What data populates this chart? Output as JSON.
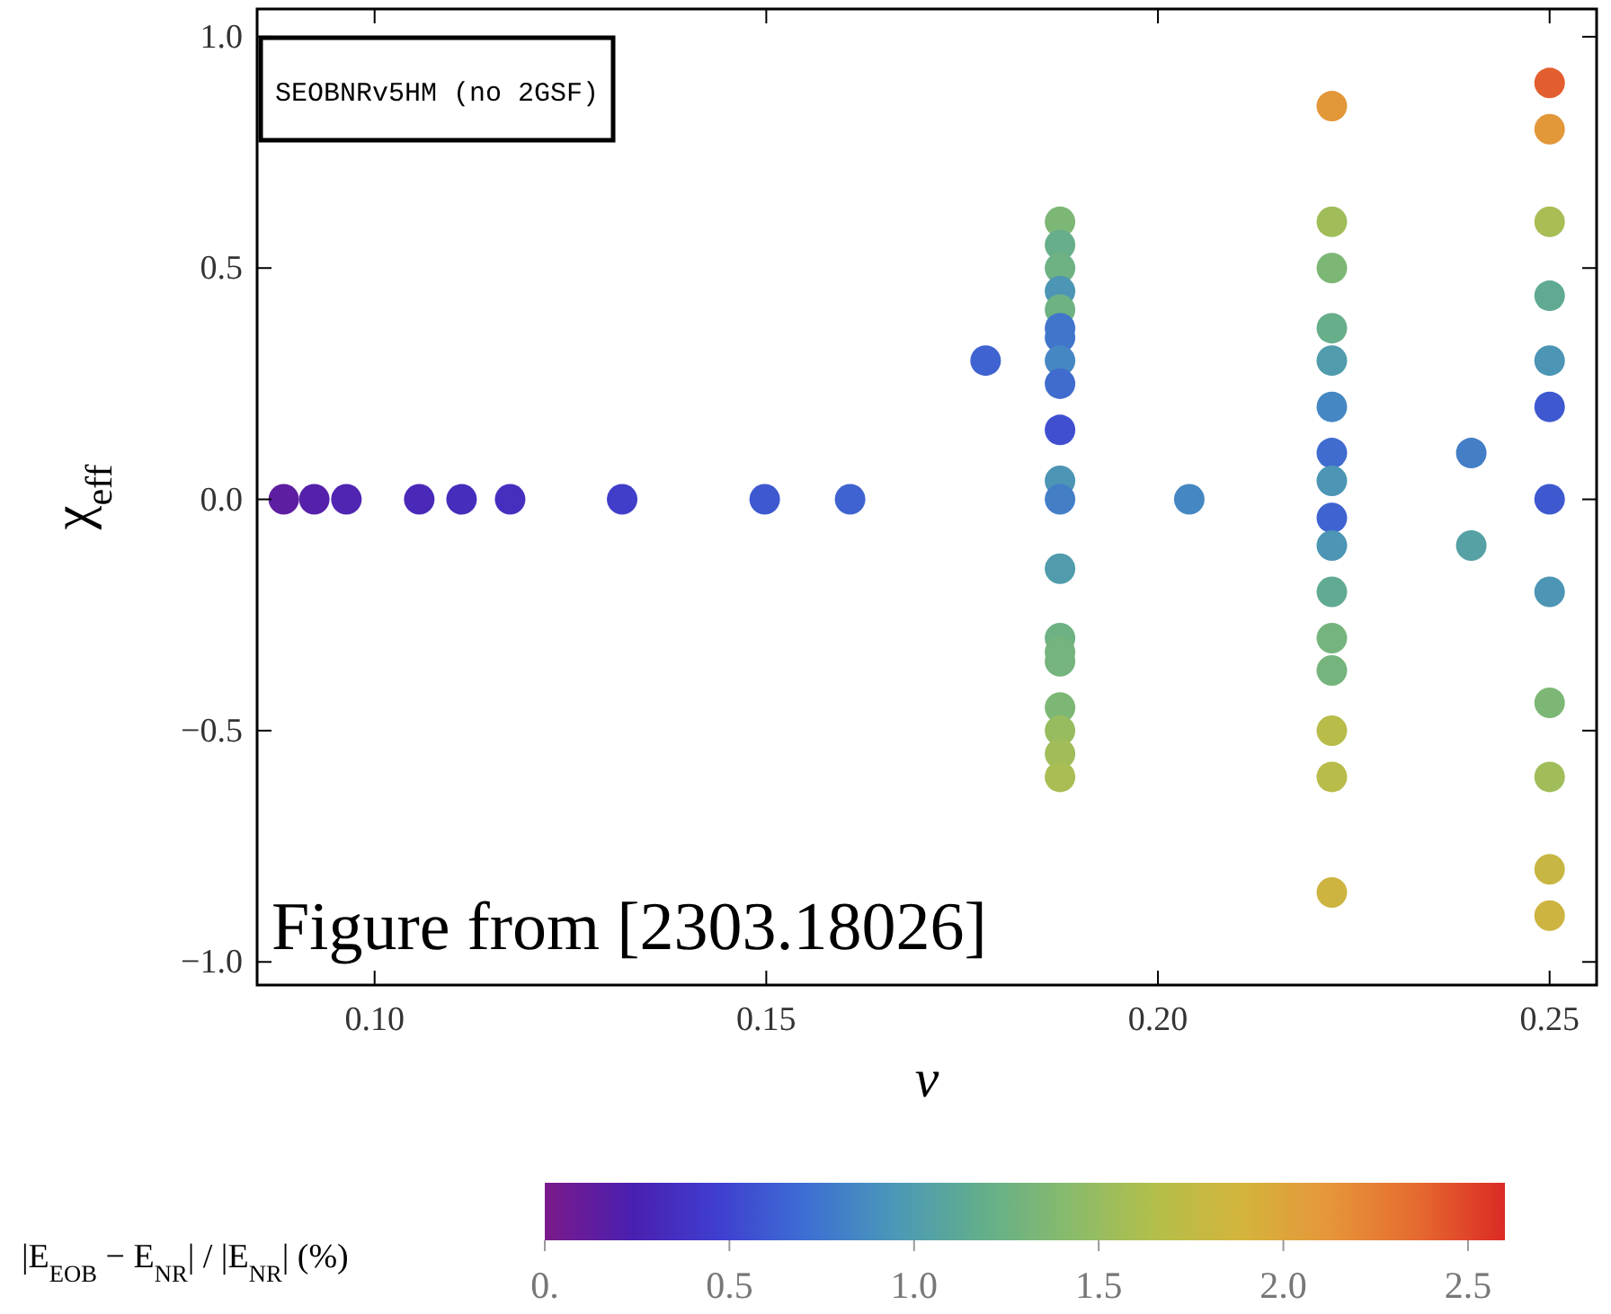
{
  "chart_data": {
    "type": "scatter",
    "xlabel": "ν",
    "ylabel": "χ$_{eff}$",
    "clabel": "|E$_{EOB}$ − E$_{NR}$| / |E$_{NR}$| (%)",
    "annotations": [
      "SEOBNRv5HM (no 2GSF)",
      "Figure from [2303.18026]"
    ],
    "marker": "circle",
    "grid": false,
    "xlim": [
      0.085,
      0.256
    ],
    "ylim": [
      -1.05,
      1.06
    ],
    "xticks": [
      {
        "value": 0.1,
        "label": "0.10"
      },
      {
        "value": 0.15,
        "label": "0.15"
      },
      {
        "value": 0.2,
        "label": "0.20"
      },
      {
        "value": 0.25,
        "label": "0.25"
      }
    ],
    "yticks": [
      {
        "value": -1,
        "label": "−1.0"
      },
      {
        "value": -0.5,
        "label": "−0.5"
      },
      {
        "value": 0,
        "label": "0.0"
      },
      {
        "value": 0.5,
        "label": "0.5"
      },
      {
        "value": 1,
        "label": "1.0"
      }
    ],
    "clim": [
      0,
      2.6
    ],
    "cticks": [
      {
        "value": 0,
        "label": "0."
      },
      {
        "value": 0.5,
        "label": "0.5"
      },
      {
        "value": 1,
        "label": "1.0"
      },
      {
        "value": 1.5,
        "label": "1.5"
      },
      {
        "value": 2,
        "label": "2.0"
      },
      {
        "value": 2.5,
        "label": "2.5"
      }
    ],
    "x": [
      0.0884,
      0.0923,
      0.0964,
      0.1057,
      0.1111,
      0.1173,
      0.1316,
      0.1498,
      0.1607,
      0.178,
      0.1875,
      0.1875,
      0.1875,
      0.1875,
      0.1875,
      0.1875,
      0.1875,
      0.1875,
      0.1875,
      0.1875,
      0.1875,
      0.1875,
      0.1875,
      0.1875,
      0.1875,
      0.1875,
      0.1875,
      0.1875,
      0.1875,
      0.1875,
      0.204,
      0.2222,
      0.2222,
      0.2222,
      0.2222,
      0.2222,
      0.2222,
      0.2222,
      0.2222,
      0.2222,
      0.2222,
      0.2222,
      0.2222,
      0.2222,
      0.2222,
      0.2222,
      0.2222,
      0.24,
      0.24,
      0.25,
      0.25,
      0.25,
      0.25,
      0.25,
      0.25,
      0.25,
      0.25,
      0.25,
      0.25,
      0.25,
      0.25
    ],
    "values": [
      0,
      0,
      0,
      0,
      0,
      0,
      0,
      0,
      0,
      0.3,
      0.6,
      0.55,
      0.5,
      0.45,
      0.41,
      0.37,
      0.35,
      0.3,
      0.25,
      0.15,
      0.04,
      0,
      -0.15,
      -0.3,
      -0.33,
      -0.35,
      -0.45,
      -0.5,
      -0.55,
      -0.6,
      0,
      0.85,
      0.6,
      0.5,
      0.37,
      0.3,
      0.2,
      0.1,
      0.04,
      -0.04,
      -0.1,
      -0.2,
      -0.3,
      -0.37,
      -0.5,
      -0.6,
      -0.85,
      0.1,
      -0.1,
      0.9,
      0.8,
      0.6,
      0.44,
      0.3,
      0.2,
      0,
      -0.2,
      -0.44,
      -0.6,
      -0.8,
      -0.9
    ],
    "cvalues": [
      0.15,
      0.2,
      0.25,
      0.3,
      0.33,
      0.35,
      0.45,
      0.6,
      0.65,
      0.65,
      1.35,
      1.2,
      1.25,
      0.95,
      1.25,
      0.75,
      0.75,
      0.85,
      0.7,
      0.55,
      0.95,
      0.8,
      1.0,
      1.25,
      1.3,
      1.3,
      1.35,
      1.5,
      1.55,
      1.6,
      0.85,
      2.1,
      1.55,
      1.35,
      1.2,
      1.0,
      0.85,
      0.7,
      0.95,
      0.65,
      0.95,
      1.15,
      1.3,
      1.3,
      1.7,
      1.7,
      1.85,
      0.8,
      1.05,
      2.4,
      2.1,
      1.6,
      1.15,
      0.95,
      0.6,
      0.6,
      0.95,
      1.35,
      1.55,
      1.8,
      1.85
    ]
  }
}
